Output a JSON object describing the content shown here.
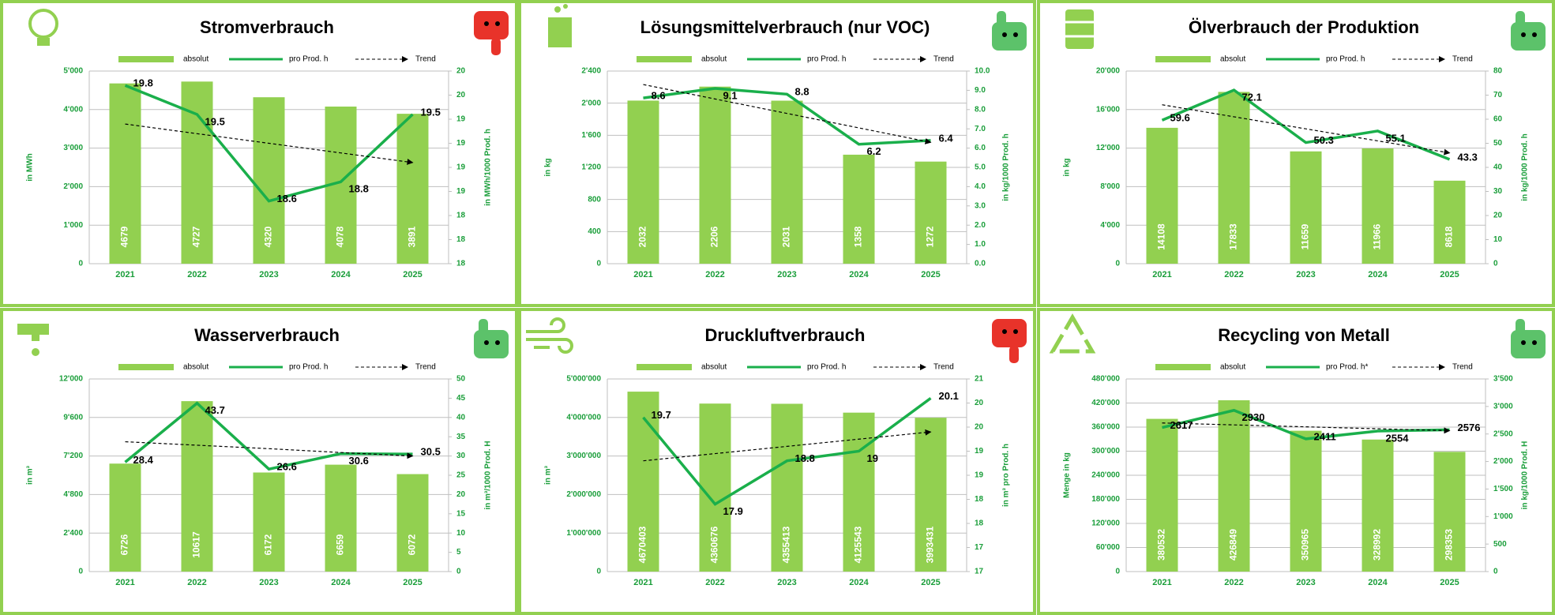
{
  "chart_data": [
    {
      "type": "combo",
      "title": "Stromverbrauch",
      "categories": [
        "2021",
        "2022",
        "2023",
        "2024",
        "2025"
      ],
      "series": [
        {
          "name": "absolut",
          "color": "#92d050",
          "values": [
            4679,
            4727,
            4320,
            4078,
            3891
          ]
        },
        {
          "name": "pro Prod. h",
          "color": "#1aaf4b",
          "axis": "y2",
          "values": [
            19.8,
            19.5,
            18.6,
            18.8,
            19.5
          ]
        },
        {
          "name": "Trend",
          "color": "#000000",
          "axis": "y2",
          "dashed": true,
          "values": [
            19.4,
            19.3,
            19.2,
            19.1,
            19.0
          ]
        }
      ],
      "ylabel": "in MWh",
      "y2label": "in MWh/1000 Prod. h",
      "ylim": [
        0,
        5000
      ],
      "yticks": [
        0,
        {
          "value": 1000,
          "label": "1'000"
        },
        {
          "value": 2000,
          "label": "2'000"
        },
        {
          "value": 3000,
          "label": "3'000"
        },
        {
          "value": 4000,
          "label": "4'000"
        },
        {
          "value": 5000,
          "label": "5'000"
        }
      ],
      "y2lim": [
        17.95,
        19.95
      ],
      "y2ticks": [
        {
          "value": 17.95,
          "label": "18"
        },
        {
          "value": 18.2,
          "label": "18"
        },
        {
          "value": 18.45,
          "label": "18"
        },
        {
          "value": 18.7,
          "label": "19"
        },
        {
          "value": 18.95,
          "label": "19"
        },
        {
          "value": 19.2,
          "label": "19"
        },
        {
          "value": 19.45,
          "label": "19"
        },
        {
          "value": 19.7,
          "label": "20"
        },
        {
          "value": 19.95,
          "label": "20"
        }
      ],
      "grid": true
    },
    {
      "type": "combo",
      "title": "Lösungsmittelverbrauch (nur VOC)",
      "categories": [
        "2021",
        "2022",
        "2023",
        "2024",
        "2025"
      ],
      "series": [
        {
          "name": "absolut",
          "color": "#92d050",
          "values": [
            2032,
            2206,
            2031,
            1358,
            1272
          ]
        },
        {
          "name": "pro Prod. h",
          "color": "#1aaf4b",
          "axis": "y2",
          "values": [
            8.6,
            9.1,
            8.8,
            6.2,
            6.4
          ]
        },
        {
          "name": "Trend",
          "color": "#000000",
          "axis": "y2",
          "dashed": true,
          "values": [
            9.3,
            8.55,
            7.8,
            7.05,
            6.3
          ]
        }
      ],
      "ylabel": "in kg",
      "y2label": "in kg/1000 Prod. h",
      "ylim": [
        0,
        2400
      ],
      "yticks": [
        0,
        400,
        800,
        {
          "value": 1200,
          "label": "1'200"
        },
        {
          "value": 1600,
          "label": "1'600"
        },
        {
          "value": 2000,
          "label": "2'000"
        },
        {
          "value": 2400,
          "label": "2'400"
        }
      ],
      "y2lim": [
        0,
        10
      ],
      "y2ticks": [
        {
          "value": 0,
          "label": "0.0"
        },
        {
          "value": 1,
          "label": "1.0"
        },
        {
          "value": 2,
          "label": "2.0"
        },
        {
          "value": 3,
          "label": "3.0"
        },
        {
          "value": 4,
          "label": "4.0"
        },
        {
          "value": 5,
          "label": "5.0"
        },
        {
          "value": 6,
          "label": "6.0"
        },
        {
          "value": 7,
          "label": "7.0"
        },
        {
          "value": 8,
          "label": "8.0"
        },
        {
          "value": 9,
          "label": "9.0"
        },
        {
          "value": 10,
          "label": "10.0"
        }
      ],
      "grid": true
    },
    {
      "type": "combo",
      "title": "Ölverbrauch der Produktion",
      "categories": [
        "2021",
        "2022",
        "2023",
        "2024",
        "2025"
      ],
      "series": [
        {
          "name": "absolut",
          "color": "#92d050",
          "values": [
            14108,
            17833,
            11659,
            11966,
            8618
          ]
        },
        {
          "name": "pro Prod. h",
          "color": "#1aaf4b",
          "axis": "y2",
          "values": [
            59.6,
            72.1,
            50.3,
            55.1,
            43.3
          ]
        },
        {
          "name": "Trend",
          "color": "#000000",
          "axis": "y2",
          "dashed": true,
          "values": [
            66,
            61,
            56,
            51,
            46
          ]
        }
      ],
      "ylabel": "in kg",
      "y2label": "in kg/1000 Prod. h",
      "ylim": [
        0,
        20000
      ],
      "yticks": [
        0,
        {
          "value": 4000,
          "label": "4'000"
        },
        {
          "value": 8000,
          "label": "8'000"
        },
        {
          "value": 12000,
          "label": "12'000"
        },
        {
          "value": 16000,
          "label": "16'000"
        },
        {
          "value": 20000,
          "label": "20'000"
        }
      ],
      "y2lim": [
        0,
        80
      ],
      "y2ticks": [
        0,
        10,
        20,
        30,
        40,
        50,
        60,
        70,
        80
      ],
      "grid": true
    },
    {
      "type": "combo",
      "title": "Wasserverbrauch",
      "categories": [
        "2021",
        "2022",
        "2023",
        "2024",
        "2025"
      ],
      "series": [
        {
          "name": "absolut",
          "color": "#92d050",
          "values": [
            6726,
            10617,
            6172,
            6659,
            6072
          ]
        },
        {
          "name": "pro Prod. h",
          "color": "#1aaf4b",
          "axis": "y2",
          "values": [
            28.4,
            43.7,
            26.6,
            30.6,
            30.5
          ]
        },
        {
          "name": "Trend",
          "color": "#000000",
          "axis": "y2",
          "dashed": true,
          "values": [
            33.7,
            32.8,
            31.9,
            30.9,
            30.0
          ]
        }
      ],
      "ylabel": "in m³",
      "y2label": "in m³/1000 Prod. H",
      "ylim": [
        0,
        12000
      ],
      "yticks": [
        0,
        {
          "value": 2400,
          "label": "2'400"
        },
        {
          "value": 4800,
          "label": "4'800"
        },
        {
          "value": 7200,
          "label": "7'200"
        },
        {
          "value": 9600,
          "label": "9'600"
        },
        {
          "value": 12000,
          "label": "12'000"
        }
      ],
      "y2lim": [
        0,
        50
      ],
      "y2ticks": [
        0,
        5,
        10,
        15,
        20,
        25,
        30,
        35,
        40,
        45,
        50
      ],
      "grid": true
    },
    {
      "type": "combo",
      "title": "Druckluftverbrauch",
      "categories": [
        "2021",
        "2022",
        "2023",
        "2024",
        "2025"
      ],
      "series": [
        {
          "name": "absolut",
          "color": "#92d050",
          "values": [
            4670403,
            4360676,
            4355413,
            4125543,
            3993431
          ]
        },
        {
          "name": "pro Prod. h",
          "color": "#1aaf4b",
          "axis": "y2",
          "values": [
            19.7,
            17.9,
            18.8,
            19.0,
            20.1
          ]
        },
        {
          "name": "Trend",
          "color": "#000000",
          "axis": "y2",
          "dashed": true,
          "values": [
            18.8,
            18.95,
            19.1,
            19.25,
            19.4
          ]
        }
      ],
      "ylabel": "in m³",
      "y2label": "in m³ pro Prod. h",
      "ylim": [
        0,
        5000000
      ],
      "yticks": [
        0,
        {
          "value": 1000000,
          "label": "1'000'000"
        },
        {
          "value": 2000000,
          "label": "2'000'000"
        },
        {
          "value": 3000000,
          "label": "3'000'000"
        },
        {
          "value": 4000000,
          "label": "4'000'000"
        },
        {
          "value": 5000000,
          "label": "5'000'000"
        }
      ],
      "y2lim": [
        16.5,
        20.5
      ],
      "y2ticks": [
        {
          "value": 16.5,
          "label": "17"
        },
        {
          "value": 17,
          "label": "17"
        },
        {
          "value": 17.5,
          "label": "18"
        },
        {
          "value": 18,
          "label": "18"
        },
        {
          "value": 18.5,
          "label": "19"
        },
        {
          "value": 19,
          "label": "19"
        },
        {
          "value": 19.5,
          "label": "20"
        },
        {
          "value": 20,
          "label": "20"
        },
        {
          "value": 20.5,
          "label": "21"
        }
      ],
      "grid": true
    },
    {
      "type": "combo",
      "title": "Recycling von Metall",
      "categories": [
        "2021",
        "2022",
        "2023",
        "2024",
        "2025"
      ],
      "series": [
        {
          "name": "absolut",
          "color": "#92d050",
          "values": [
            380532,
            426849,
            350965,
            328992,
            298353
          ]
        },
        {
          "name": "pro Prod. h*",
          "color": "#1aaf4b",
          "axis": "y2",
          "values": [
            2617,
            2930,
            2411,
            2554,
            2576
          ]
        },
        {
          "name": "Trend",
          "color": "#000000",
          "axis": "y2",
          "dashed": true,
          "values": [
            2700,
            2665,
            2630,
            2595,
            2560
          ]
        }
      ],
      "ylabel": "Menge in kg",
      "y2label": "in kg/1000 Prod. H",
      "ylim": [
        0,
        480000
      ],
      "yticks": [
        0,
        {
          "value": 60000,
          "label": "60'000"
        },
        {
          "value": 120000,
          "label": "120'000"
        },
        {
          "value": 180000,
          "label": "180'000"
        },
        {
          "value": 240000,
          "label": "240'000"
        },
        {
          "value": 300000,
          "label": "300'000"
        },
        {
          "value": 360000,
          "label": "360'000"
        },
        {
          "value": 420000,
          "label": "420'000"
        },
        {
          "value": 480000,
          "label": "480'000"
        }
      ],
      "y2lim": [
        0,
        3500
      ],
      "y2ticks": [
        0,
        500,
        {
          "value": 1000,
          "label": "1'000"
        },
        {
          "value": 1500,
          "label": "1'500"
        },
        {
          "value": 2000,
          "label": "2'000"
        },
        {
          "value": 2500,
          "label": "2'500"
        },
        {
          "value": 3000,
          "label": "3'000"
        },
        {
          "value": 3500,
          "label": "3'500"
        }
      ],
      "grid": true
    }
  ]
}
